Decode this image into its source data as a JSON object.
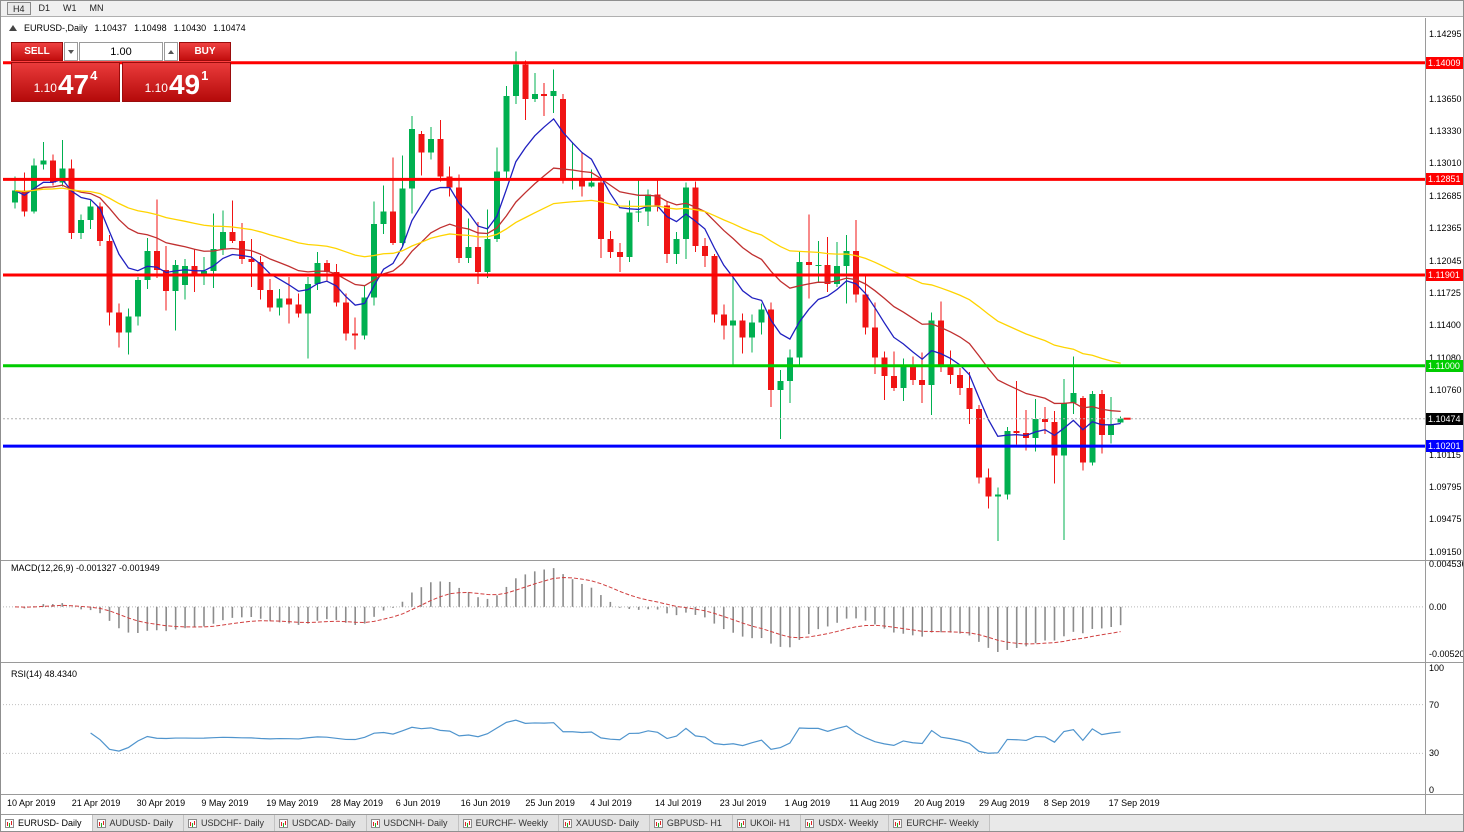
{
  "toolbar": {
    "periods": [
      "H4",
      "D1",
      "W1",
      "MN"
    ]
  },
  "chart": {
    "info": {
      "symbol_period": "EURUSD-,Daily",
      "open": "1.10437",
      "high": "1.10498",
      "low": "1.10430",
      "close": "1.10474"
    },
    "price_ticks": [
      "1.14295",
      "1.13650",
      "1.13330",
      "1.13010",
      "1.12685",
      "1.12365",
      "1.12045",
      "1.11725",
      "1.11400",
      "1.11080",
      "1.10760",
      "1.10115",
      "1.09795",
      "1.09475",
      "1.09150"
    ],
    "levels": [
      {
        "label": "1.14009",
        "value": 1.14009,
        "color": "#ff0000"
      },
      {
        "label": "1.12851",
        "value": 1.12851,
        "color": "#ff0000"
      },
      {
        "label": "1.11901",
        "value": 1.11901,
        "color": "#ff0000"
      },
      {
        "label": "1.11000",
        "value": 1.11,
        "color": "#00cc00"
      },
      {
        "label": "1.10201",
        "value": 1.10201,
        "color": "#0000ff"
      }
    ],
    "current_price": {
      "label": "1.10474",
      "value": 1.10474
    }
  },
  "trade_panel": {
    "sell_label": "SELL",
    "buy_label": "BUY",
    "volume": "1.00",
    "sell_price": {
      "prefix": "1.10",
      "big": "47",
      "sup": "4"
    },
    "buy_price": {
      "prefix": "1.10",
      "big": "49",
      "sup": "1"
    }
  },
  "macd": {
    "label": "MACD(12,26,9) -0.001327 -0.001949",
    "axis": [
      "0.004536",
      "0.00",
      "-0.005205"
    ],
    "range": {
      "max": 0.004536,
      "min": -0.005205
    }
  },
  "rsi": {
    "label": "RSI(14) 48.4340",
    "axis": [
      100,
      70,
      30,
      0
    ]
  },
  "tabs": [
    "EURUSD- Daily",
    "AUDUSD- Daily",
    "USDCHF- Daily",
    "USDCAD- Daily",
    "USDCNH- Daily",
    "EURCHF- Weekly",
    "XAUUSD- Daily",
    "GBPUSD- H1",
    "UKOil- H1",
    "USDX- Weekly",
    "EURCHF- Weekly"
  ],
  "chart_data": {
    "type": "candlestick",
    "title": "EURUSD-,Daily",
    "ylim": [
      1.0915,
      1.14295
    ],
    "x_axis_labels": [
      "10 Apr 2019",
      "21 Apr 2019",
      "30 Apr 2019",
      "9 May 2019",
      "19 May 2019",
      "28 May 2019",
      "6 Jun 2019",
      "16 Jun 2019",
      "25 Jun 2019",
      "4 Jul 2019",
      "14 Jul 2019",
      "23 Jul 2019",
      "1 Aug 2019",
      "11 Aug 2019",
      "20 Aug 2019",
      "29 Aug 2019",
      "8 Sep 2019",
      "17 Sep 2019"
    ],
    "candles": [
      [
        1.1262,
        1.1288,
        1.1256,
        1.1274
      ],
      [
        1.1274,
        1.1292,
        1.1248,
        1.1253
      ],
      [
        1.1253,
        1.1306,
        1.1251,
        1.1299
      ],
      [
        1.13,
        1.1322,
        1.1295,
        1.1304
      ],
      [
        1.1304,
        1.131,
        1.1279,
        1.1282
      ],
      [
        1.1282,
        1.1324,
        1.1278,
        1.1296
      ],
      [
        1.1296,
        1.1305,
        1.1226,
        1.1232
      ],
      [
        1.1232,
        1.125,
        1.1226,
        1.1245
      ],
      [
        1.1245,
        1.1264,
        1.1236,
        1.1258
      ],
      [
        1.1258,
        1.1262,
        1.1219,
        1.1224
      ],
      [
        1.1224,
        1.123,
        1.114,
        1.1153
      ],
      [
        1.1153,
        1.1162,
        1.1118,
        1.1133
      ],
      [
        1.1133,
        1.1157,
        1.1111,
        1.1149
      ],
      [
        1.1149,
        1.1188,
        1.114,
        1.1185
      ],
      [
        1.1185,
        1.1227,
        1.1176,
        1.1214
      ],
      [
        1.1214,
        1.1265,
        1.1187,
        1.1195
      ],
      [
        1.1195,
        1.1219,
        1.1155,
        1.1174
      ],
      [
        1.1174,
        1.1205,
        1.1135,
        1.12
      ],
      [
        1.118,
        1.1206,
        1.1166,
        1.1199
      ],
      [
        1.1199,
        1.1216,
        1.1173,
        1.1191
      ],
      [
        1.1191,
        1.1208,
        1.118,
        1.1194
      ],
      [
        1.1194,
        1.1251,
        1.1177,
        1.1216
      ],
      [
        1.1216,
        1.1254,
        1.121,
        1.1233
      ],
      [
        1.1233,
        1.1264,
        1.1222,
        1.1224
      ],
      [
        1.1224,
        1.1242,
        1.1201,
        1.1206
      ],
      [
        1.1206,
        1.1226,
        1.1178,
        1.1203
      ],
      [
        1.1203,
        1.1209,
        1.1166,
        1.1175
      ],
      [
        1.1175,
        1.1186,
        1.1154,
        1.1158
      ],
      [
        1.1158,
        1.1176,
        1.115,
        1.1167
      ],
      [
        1.1167,
        1.1188,
        1.1142,
        1.1161
      ],
      [
        1.1161,
        1.1172,
        1.1148,
        1.1152
      ],
      [
        1.1152,
        1.1188,
        1.1107,
        1.1181
      ],
      [
        1.1181,
        1.1213,
        1.1175,
        1.1202
      ],
      [
        1.1202,
        1.1205,
        1.1184,
        1.1193
      ],
      [
        1.1193,
        1.1201,
        1.1159,
        1.1163
      ],
      [
        1.1163,
        1.1172,
        1.1125,
        1.1132
      ],
      [
        1.1132,
        1.1148,
        1.1116,
        1.113
      ],
      [
        1.113,
        1.1179,
        1.1126,
        1.1168
      ],
      [
        1.1168,
        1.1263,
        1.116,
        1.1241
      ],
      [
        1.1241,
        1.1279,
        1.1231,
        1.1253
      ],
      [
        1.1253,
        1.1307,
        1.122,
        1.1222
      ],
      [
        1.1222,
        1.1309,
        1.1219,
        1.1276
      ],
      [
        1.1276,
        1.1348,
        1.1251,
        1.1335
      ],
      [
        1.133,
        1.1333,
        1.1289,
        1.1312
      ],
      [
        1.1312,
        1.1337,
        1.1305,
        1.1325
      ],
      [
        1.1325,
        1.1344,
        1.1283,
        1.1288
      ],
      [
        1.1288,
        1.1298,
        1.1268,
        1.1277
      ],
      [
        1.1277,
        1.129,
        1.1202,
        1.1207
      ],
      [
        1.1207,
        1.1246,
        1.1202,
        1.1218
      ],
      [
        1.1218,
        1.1243,
        1.1181,
        1.1193
      ],
      [
        1.1193,
        1.1255,
        1.1187,
        1.1226
      ],
      [
        1.1226,
        1.1317,
        1.1223,
        1.1293
      ],
      [
        1.1293,
        1.1378,
        1.1285,
        1.1368
      ],
      [
        1.1368,
        1.1412,
        1.136,
        1.1399
      ],
      [
        1.1399,
        1.1403,
        1.1344,
        1.1365
      ],
      [
        1.1365,
        1.1391,
        1.1362,
        1.137
      ],
      [
        1.137,
        1.1381,
        1.1348,
        1.1368
      ],
      [
        1.1368,
        1.1394,
        1.1351,
        1.1373
      ],
      [
        1.1365,
        1.137,
        1.1281,
        1.1285
      ],
      [
        1.1285,
        1.1322,
        1.1275,
        1.1285
      ],
      [
        1.1285,
        1.1312,
        1.1268,
        1.1278
      ],
      [
        1.1278,
        1.1295,
        1.1277,
        1.1282
      ],
      [
        1.1282,
        1.1288,
        1.1207,
        1.1226
      ],
      [
        1.1226,
        1.1234,
        1.1207,
        1.1213
      ],
      [
        1.1213,
        1.1222,
        1.1193,
        1.1208
      ],
      [
        1.1208,
        1.1264,
        1.1203,
        1.1252
      ],
      [
        1.1252,
        1.1285,
        1.1243,
        1.1253
      ],
      [
        1.1253,
        1.1275,
        1.1239,
        1.127
      ],
      [
        1.127,
        1.1284,
        1.1253,
        1.1259
      ],
      [
        1.1259,
        1.1263,
        1.1202,
        1.1211
      ],
      [
        1.1211,
        1.1233,
        1.1201,
        1.1226
      ],
      [
        1.1226,
        1.1282,
        1.1206,
        1.1277
      ],
      [
        1.1277,
        1.1283,
        1.1213,
        1.1219
      ],
      [
        1.1219,
        1.1227,
        1.1198,
        1.1209
      ],
      [
        1.1209,
        1.1211,
        1.1143,
        1.1151
      ],
      [
        1.1151,
        1.1161,
        1.1126,
        1.114
      ],
      [
        1.114,
        1.1187,
        1.1101,
        1.1145
      ],
      [
        1.1145,
        1.1152,
        1.1112,
        1.1128
      ],
      [
        1.1128,
        1.1151,
        1.1113,
        1.1143
      ],
      [
        1.1143,
        1.1162,
        1.1131,
        1.1156
      ],
      [
        1.1156,
        1.1163,
        1.1059,
        1.1076
      ],
      [
        1.1076,
        1.1096,
        1.1027,
        1.1085
      ],
      [
        1.1085,
        1.1116,
        1.1063,
        1.1108
      ],
      [
        1.1108,
        1.1214,
        1.1101,
        1.1203
      ],
      [
        1.1203,
        1.125,
        1.1167,
        1.12
      ],
      [
        1.12,
        1.1224,
        1.1183,
        1.12
      ],
      [
        1.12,
        1.1228,
        1.1173,
        1.1181
      ],
      [
        1.1181,
        1.1223,
        1.1178,
        1.1199
      ],
      [
        1.1199,
        1.123,
        1.1162,
        1.1214
      ],
      [
        1.1214,
        1.1245,
        1.1163,
        1.1171
      ],
      [
        1.1171,
        1.1191,
        1.1131,
        1.1138
      ],
      [
        1.1138,
        1.1163,
        1.1092,
        1.1108
      ],
      [
        1.1108,
        1.1114,
        1.1066,
        1.109
      ],
      [
        1.109,
        1.1114,
        1.1075,
        1.1078
      ],
      [
        1.1078,
        1.1107,
        1.1065,
        1.1099
      ],
      [
        1.1099,
        1.1109,
        1.1081,
        1.1086
      ],
      [
        1.1086,
        1.1113,
        1.1063,
        1.1081
      ],
      [
        1.1081,
        1.1153,
        1.1051,
        1.1145
      ],
      [
        1.1145,
        1.1164,
        1.1094,
        1.1101
      ],
      [
        1.1101,
        1.1115,
        1.1082,
        1.1091
      ],
      [
        1.1091,
        1.1098,
        1.1071,
        1.1078
      ],
      [
        1.1078,
        1.1094,
        1.1042,
        1.1057
      ],
      [
        1.1057,
        1.1061,
        1.0983,
        1.0989
      ],
      [
        1.0989,
        1.0998,
        1.0958,
        1.097
      ],
      [
        1.097,
        1.0979,
        1.0926,
        1.0972
      ],
      [
        1.0972,
        1.1039,
        1.0967,
        1.1035
      ],
      [
        1.1035,
        1.1085,
        1.1022,
        1.1033
      ],
      [
        1.1033,
        1.1056,
        1.1016,
        1.1028
      ],
      [
        1.1028,
        1.1067,
        1.1015,
        1.1047
      ],
      [
        1.1047,
        1.1059,
        1.1032,
        1.1044
      ],
      [
        1.1044,
        1.1055,
        1.0983,
        1.1011
      ],
      [
        1.1011,
        1.1087,
        1.0927,
        1.1063
      ],
      [
        1.1063,
        1.1109,
        1.1052,
        1.1073
      ],
      [
        1.1068,
        1.107,
        1.0996,
        1.1004
      ],
      [
        1.1004,
        1.1075,
        1.1001,
        1.1072
      ],
      [
        1.1072,
        1.1076,
        1.1013,
        1.1031
      ],
      [
        1.1031,
        1.1069,
        1.1023,
        1.1041
      ],
      [
        1.10437,
        1.10498,
        1.1043,
        1.10474
      ]
    ],
    "overlays": {
      "ma_fast_period": 8,
      "ma_mid_period": 21,
      "ma_slow_period": 50
    },
    "indicators": {
      "macd": {
        "fast": 12,
        "slow": 26,
        "signal": 9
      },
      "rsi": {
        "period": 14
      }
    },
    "colors": {
      "up": "#00b050",
      "down": "#f01414",
      "ma_fast": "#2020c0",
      "ma_mid": "#c03030",
      "ma_slow": "#ffd400",
      "macd_hist": "#8c8c8c",
      "macd_signal": "#d04040",
      "rsi_line": "#4f94cd"
    }
  }
}
